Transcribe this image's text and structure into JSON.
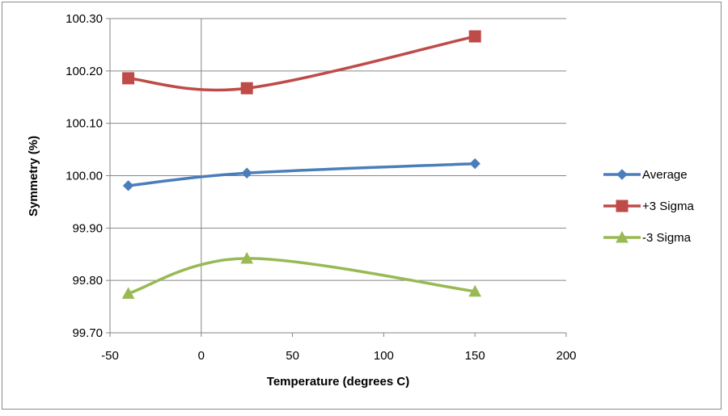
{
  "chart_data": {
    "type": "line",
    "xlabel": "Temperature (degrees C)",
    "ylabel": "Symmetry (%)",
    "xlim": [
      -50,
      200
    ],
    "ylim": [
      99.7,
      100.3
    ],
    "x_ticks": [
      "-50",
      "0",
      "50",
      "100",
      "150",
      "200"
    ],
    "y_ticks": [
      "100.30",
      "100.20",
      "100.10",
      "100.00",
      "99.90",
      "99.80",
      "99.70"
    ],
    "x_tick_values": [
      -50,
      0,
      50,
      100,
      150,
      200
    ],
    "y_tick_values": [
      100.3,
      100.2,
      100.1,
      100.0,
      99.9,
      99.8,
      99.7
    ],
    "smooth": true,
    "grid": "horizontal major gridlines",
    "legend_position": "right",
    "series": [
      {
        "name": "Average",
        "color": "#4a7ebb",
        "marker": "diamond",
        "x": [
          -40,
          25,
          150
        ],
        "values": [
          99.981,
          100.005,
          100.023
        ]
      },
      {
        "name": "+3 Sigma",
        "color": "#be4b48",
        "marker": "square",
        "x": [
          -40,
          25,
          150
        ],
        "values": [
          100.186,
          100.167,
          100.266
        ]
      },
      {
        "name": "-3 Sigma",
        "color": "#98b954",
        "marker": "triangle",
        "x": [
          -40,
          25,
          150
        ],
        "values": [
          99.775,
          99.842,
          99.779
        ]
      }
    ]
  }
}
